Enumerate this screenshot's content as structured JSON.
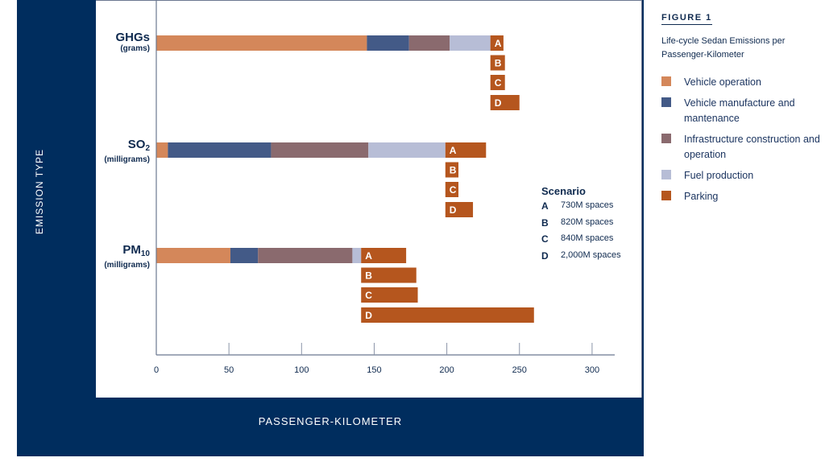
{
  "figure_label": "FIGURE 1",
  "figure_title": "Life-cycle Sedan Emissions per Passenger-Kilometer",
  "colors": {
    "navy": "#002d5e",
    "vehicle_operation": "#d4875a",
    "vehicle_manufacture": "#435a87",
    "infrastructure": "#8a6a6e",
    "fuel_production": "#b7bdd6",
    "parking": "#b5561e"
  },
  "legend": [
    {
      "label": "Vehicle operation",
      "color": "#d4875a"
    },
    {
      "label": "Vehicle manufacture and mantenance",
      "color": "#435a87"
    },
    {
      "label": "Infrastructure construction and operation",
      "color": "#8a6a6e"
    },
    {
      "label": "Fuel production",
      "color": "#b7bdd6"
    },
    {
      "label": "Parking",
      "color": "#b5561e"
    }
  ],
  "scenario": {
    "title": "Scenario",
    "items": [
      {
        "letter": "A",
        "label": "730M spaces"
      },
      {
        "letter": "B",
        "label": "820M spaces"
      },
      {
        "letter": "C",
        "label": "840M spaces"
      },
      {
        "letter": "D",
        "label": "2,000M spaces"
      }
    ]
  },
  "chart_data": {
    "type": "bar",
    "orientation": "horizontal",
    "stacked": true,
    "title": "Life-cycle Sedan Emissions per Passenger-Kilometer",
    "xlabel": "PASSENGER-KILOMETER",
    "ylabel": "EMISSION TYPE",
    "xlim": [
      0,
      315
    ],
    "xticks": [
      0,
      50,
      100,
      150,
      200,
      250,
      300
    ],
    "grid": false,
    "legend_position": "right",
    "categories": [
      {
        "name": "GHGs",
        "sub": "",
        "unit": "(grams)"
      },
      {
        "name": "SO",
        "sub": "2",
        "unit": "(milligrams)"
      },
      {
        "name": "PM",
        "sub": "10",
        "unit": "(milligrams)"
      }
    ],
    "series": [
      {
        "name": "Vehicle operation",
        "values": [
          145,
          8,
          51
        ]
      },
      {
        "name": "Vehicle manufacture and mantenance",
        "values": [
          29,
          71,
          19
        ]
      },
      {
        "name": "Infrastructure construction and operation",
        "values": [
          28,
          67,
          65
        ]
      },
      {
        "name": "Fuel production",
        "values": [
          28,
          53,
          6
        ]
      }
    ],
    "parking_scenarios": {
      "labels": [
        "A",
        "B",
        "C",
        "D"
      ],
      "values": [
        [
          9,
          10,
          10,
          20
        ],
        [
          28,
          9,
          9,
          19
        ],
        [
          31,
          38,
          39,
          119
        ]
      ]
    }
  }
}
